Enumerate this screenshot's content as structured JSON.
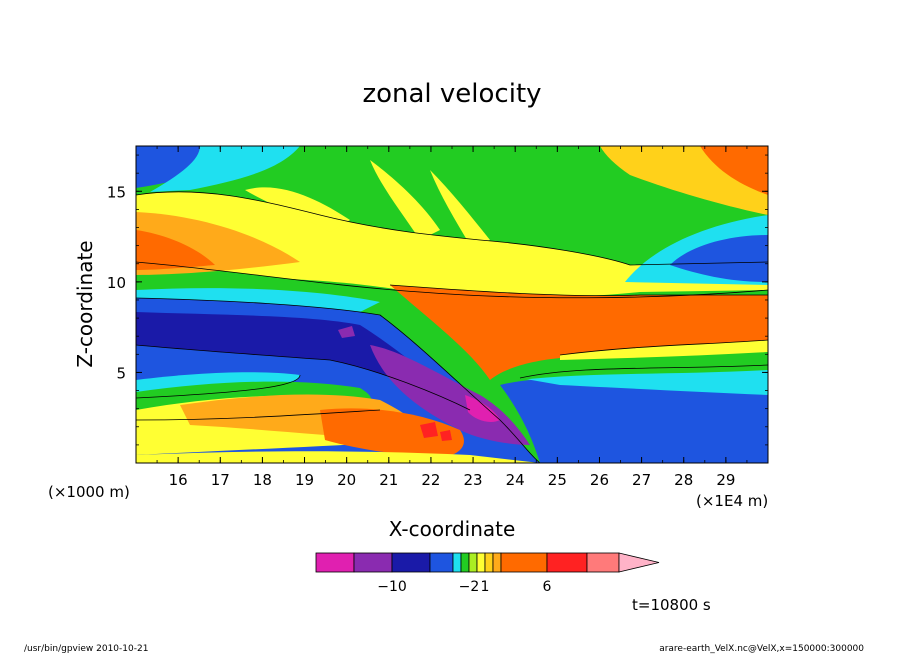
{
  "chart_data": {
    "type": "heatmap",
    "title": "zonal velocity",
    "xlabel": "X-coordinate",
    "ylabel": "Z-coordinate",
    "x_unit": "(×1E4 m)",
    "y_unit": "(×1000 m)",
    "x_ticks": [
      16,
      17,
      18,
      19,
      20,
      21,
      22,
      23,
      24,
      25,
      26,
      27,
      28,
      29
    ],
    "y_ticks": [
      5,
      10,
      15
    ],
    "xlim": [
      15.0,
      30.0
    ],
    "ylim": [
      0.0,
      17.5
    ],
    "colorbar": {
      "colors": [
        "#e020b0",
        "#8a2bb0",
        "#1a1aa8",
        "#1e55e0",
        "#1fe0f0",
        "#22cc22",
        "#aaee22",
        "#ffff33",
        "#ffd11a",
        "#ffaa1a",
        "#ff6a00",
        "#ff2222",
        "#ff7a7a",
        "#ffb3c8"
      ],
      "labels": [
        {
          "value": "−10",
          "index": 1
        },
        {
          "value": "−2",
          "index": 5
        },
        {
          "value": "1",
          "index": 7
        },
        {
          "value": "6",
          "index": 10
        }
      ]
    },
    "time_label": "t=10800 s"
  },
  "footer": {
    "left": "/usr/bin/gpview 2010-10-21",
    "right": "arare-earth_VelX.nc@VelX,x=150000:300000"
  }
}
